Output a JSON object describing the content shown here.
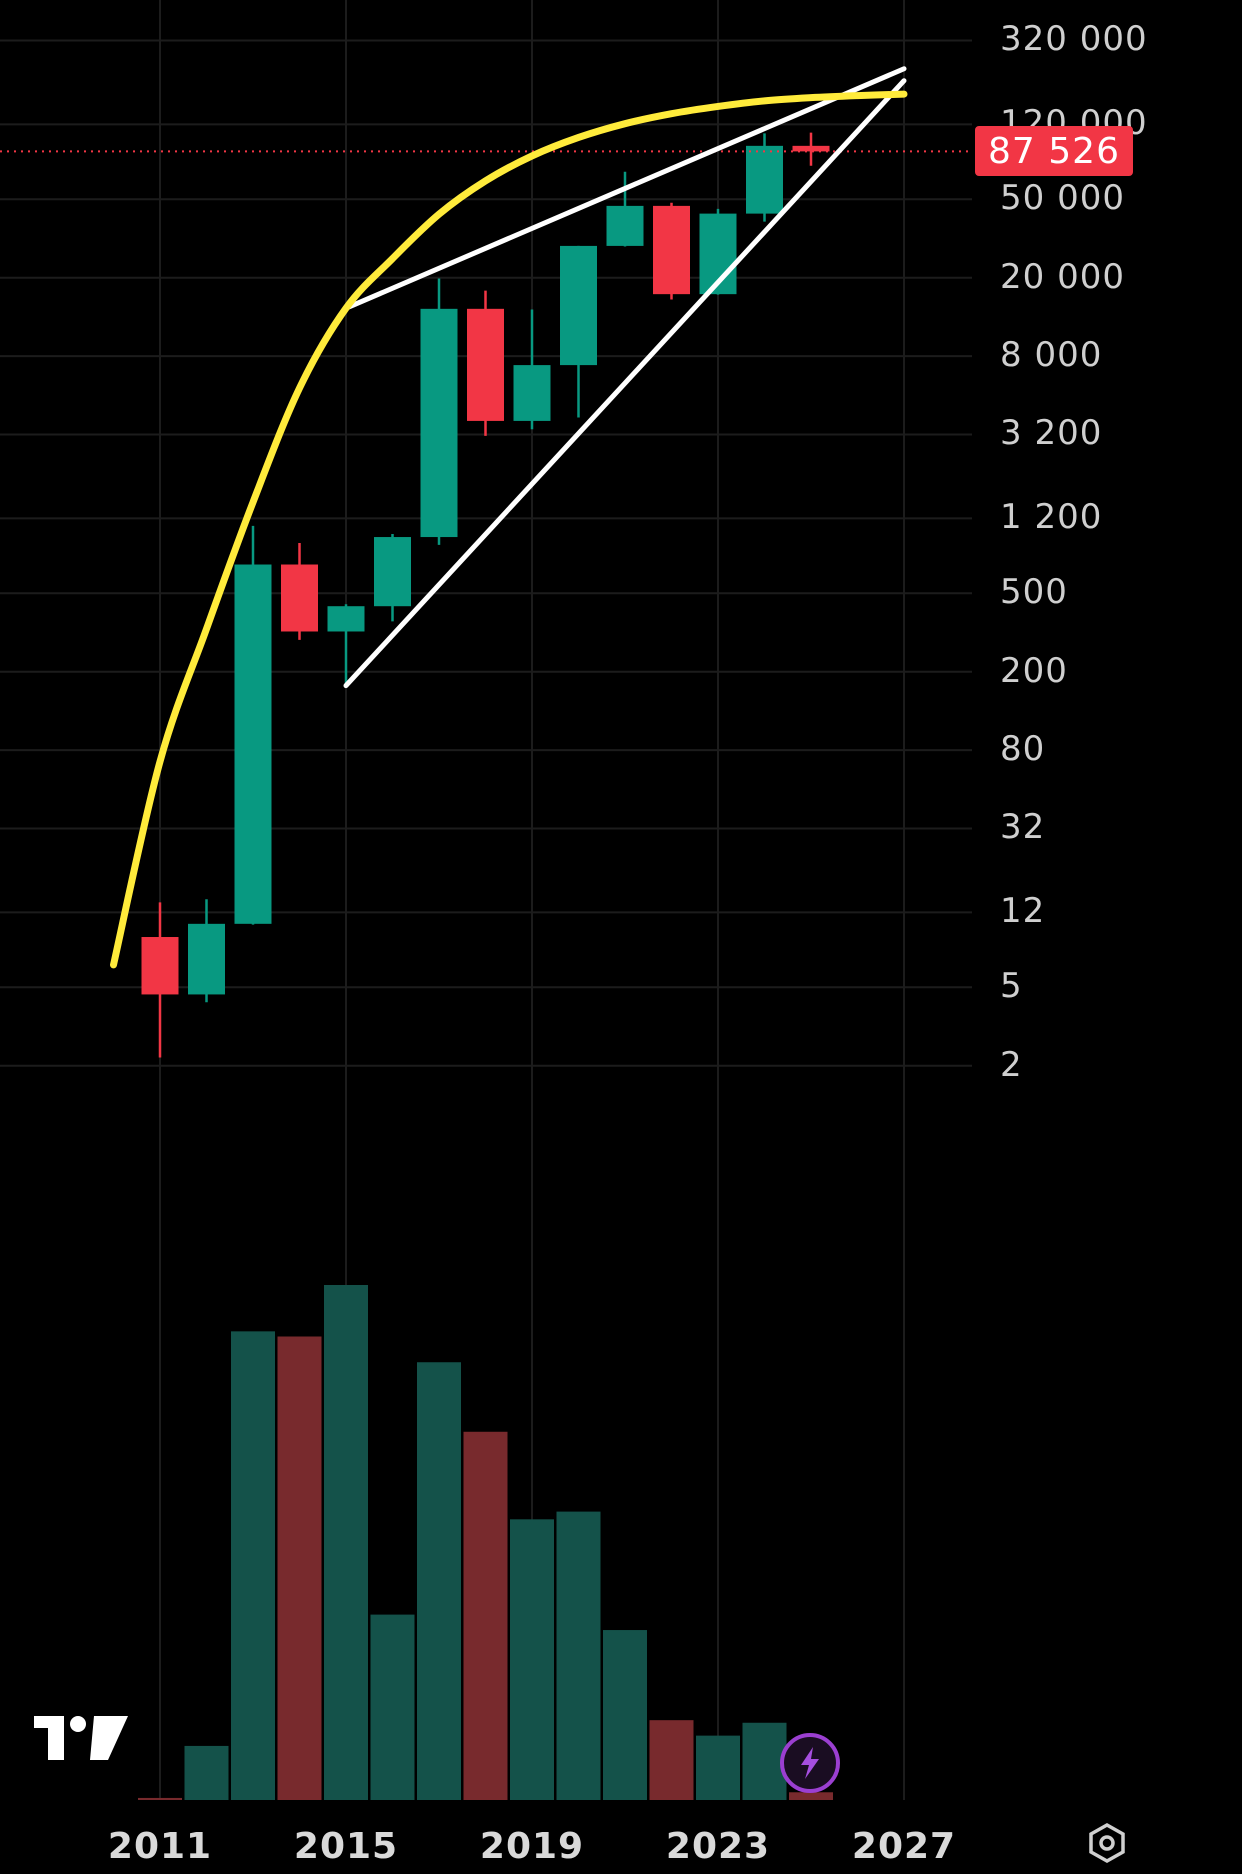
{
  "chart_data": {
    "type": "candlestick",
    "title": "",
    "scale": "log",
    "ylim": [
      1.3,
      420000
    ],
    "x_axis": {
      "ticks": [
        "2011",
        "2015",
        "2019",
        "2023",
        "2027"
      ]
    },
    "y_axis": {
      "ticks": [
        "320 000",
        "120 000",
        "50 000",
        "20 000",
        "8 000",
        "3 200",
        "1 200",
        "500",
        "200",
        "80",
        "32",
        "12",
        "5",
        "2"
      ]
    },
    "last_price": "87 526",
    "candles": [
      {
        "year": 2011,
        "open": 9.0,
        "high": 13.5,
        "low": 2.2,
        "close": 4.6
      },
      {
        "year": 2012,
        "open": 4.6,
        "high": 14.0,
        "low": 4.2,
        "close": 10.5
      },
      {
        "year": 2013,
        "open": 10.5,
        "high": 1100,
        "low": 10.4,
        "close": 700
      },
      {
        "year": 2014,
        "open": 700,
        "high": 900,
        "low": 290,
        "close": 320
      },
      {
        "year": 2015,
        "open": 320,
        "high": 440,
        "low": 170,
        "close": 430
      },
      {
        "year": 2016,
        "open": 430,
        "high": 1000,
        "low": 360,
        "close": 965
      },
      {
        "year": 2017,
        "open": 965,
        "high": 19800,
        "low": 880,
        "close": 13900
      },
      {
        "year": 2018,
        "open": 13900,
        "high": 17200,
        "low": 3150,
        "close": 3750
      },
      {
        "year": 2019,
        "open": 3750,
        "high": 13800,
        "low": 3400,
        "close": 7200
      },
      {
        "year": 2020,
        "open": 7200,
        "high": 29000,
        "low": 3900,
        "close": 29000
      },
      {
        "year": 2021,
        "open": 29000,
        "high": 69000,
        "low": 28800,
        "close": 46300
      },
      {
        "year": 2022,
        "open": 46300,
        "high": 48000,
        "low": 15500,
        "close": 16500
      },
      {
        "year": 2023,
        "open": 16500,
        "high": 44700,
        "low": 16400,
        "close": 42300
      },
      {
        "year": 2024,
        "open": 42300,
        "high": 108000,
        "low": 38500,
        "close": 93400
      },
      {
        "year": 2025,
        "open": 93400,
        "high": 109000,
        "low": 74000,
        "close": 87526
      }
    ],
    "volume": [
      {
        "year": 2011,
        "value": 0.4,
        "direction": "down"
      },
      {
        "year": 2012,
        "value": 10.5,
        "direction": "up"
      },
      {
        "year": 2013,
        "value": 91,
        "direction": "up"
      },
      {
        "year": 2014,
        "value": 90,
        "direction": "down"
      },
      {
        "year": 2015,
        "value": 100,
        "direction": "up"
      },
      {
        "year": 2016,
        "value": 36,
        "direction": "up"
      },
      {
        "year": 2017,
        "value": 85,
        "direction": "up"
      },
      {
        "year": 2018,
        "value": 71.5,
        "direction": "down"
      },
      {
        "year": 2019,
        "value": 54.5,
        "direction": "up"
      },
      {
        "year": 2020,
        "value": 56,
        "direction": "up"
      },
      {
        "year": 2021,
        "value": 33,
        "direction": "up"
      },
      {
        "year": 2022,
        "value": 15.5,
        "direction": "down"
      },
      {
        "year": 2023,
        "value": 12.5,
        "direction": "up"
      },
      {
        "year": 2024,
        "value": 15,
        "direction": "up"
      },
      {
        "year": 2025,
        "value": 1.5,
        "direction": "down"
      }
    ],
    "annotations": [
      {
        "kind": "trendline",
        "color": "#ffffff",
        "from": {
          "year": 2015,
          "value": 170
        },
        "to": {
          "year": 2027,
          "value": 200000
        }
      },
      {
        "kind": "trendline",
        "color": "#ffffff",
        "from": {
          "year": 2015,
          "value": 14000
        },
        "to": {
          "year": 2027,
          "value": 230000
        }
      },
      {
        "kind": "curve",
        "color": "#ffeb3b",
        "points": [
          {
            "year": 2010,
            "value": 6.5
          },
          {
            "year": 2011,
            "value": 70
          },
          {
            "year": 2012,
            "value": 330
          },
          {
            "year": 2013,
            "value": 1450
          },
          {
            "year": 2014,
            "value": 5500
          },
          {
            "year": 2015,
            "value": 14000
          },
          {
            "year": 2016,
            "value": 25000
          },
          {
            "year": 2017,
            "value": 42000
          },
          {
            "year": 2018,
            "value": 62000
          },
          {
            "year": 2019,
            "value": 83000
          },
          {
            "year": 2020,
            "value": 103000
          },
          {
            "year": 2021,
            "value": 121000
          },
          {
            "year": 2022,
            "value": 136000
          },
          {
            "year": 2023,
            "value": 148000
          },
          {
            "year": 2024,
            "value": 158000
          },
          {
            "year": 2025,
            "value": 164000
          },
          {
            "year": 2026,
            "value": 168000
          },
          {
            "year": 2027,
            "value": 171000
          }
        ]
      }
    ],
    "colors": {
      "up": "#089981",
      "down": "#f23645",
      "up_volume": "#14524a",
      "down_volume": "#782a2d",
      "background": "#000000"
    },
    "grid": true
  },
  "icons": {
    "logo": "tradingview-logo",
    "lightning": "lightning-icon",
    "settings": "hexagon-settings-icon"
  }
}
